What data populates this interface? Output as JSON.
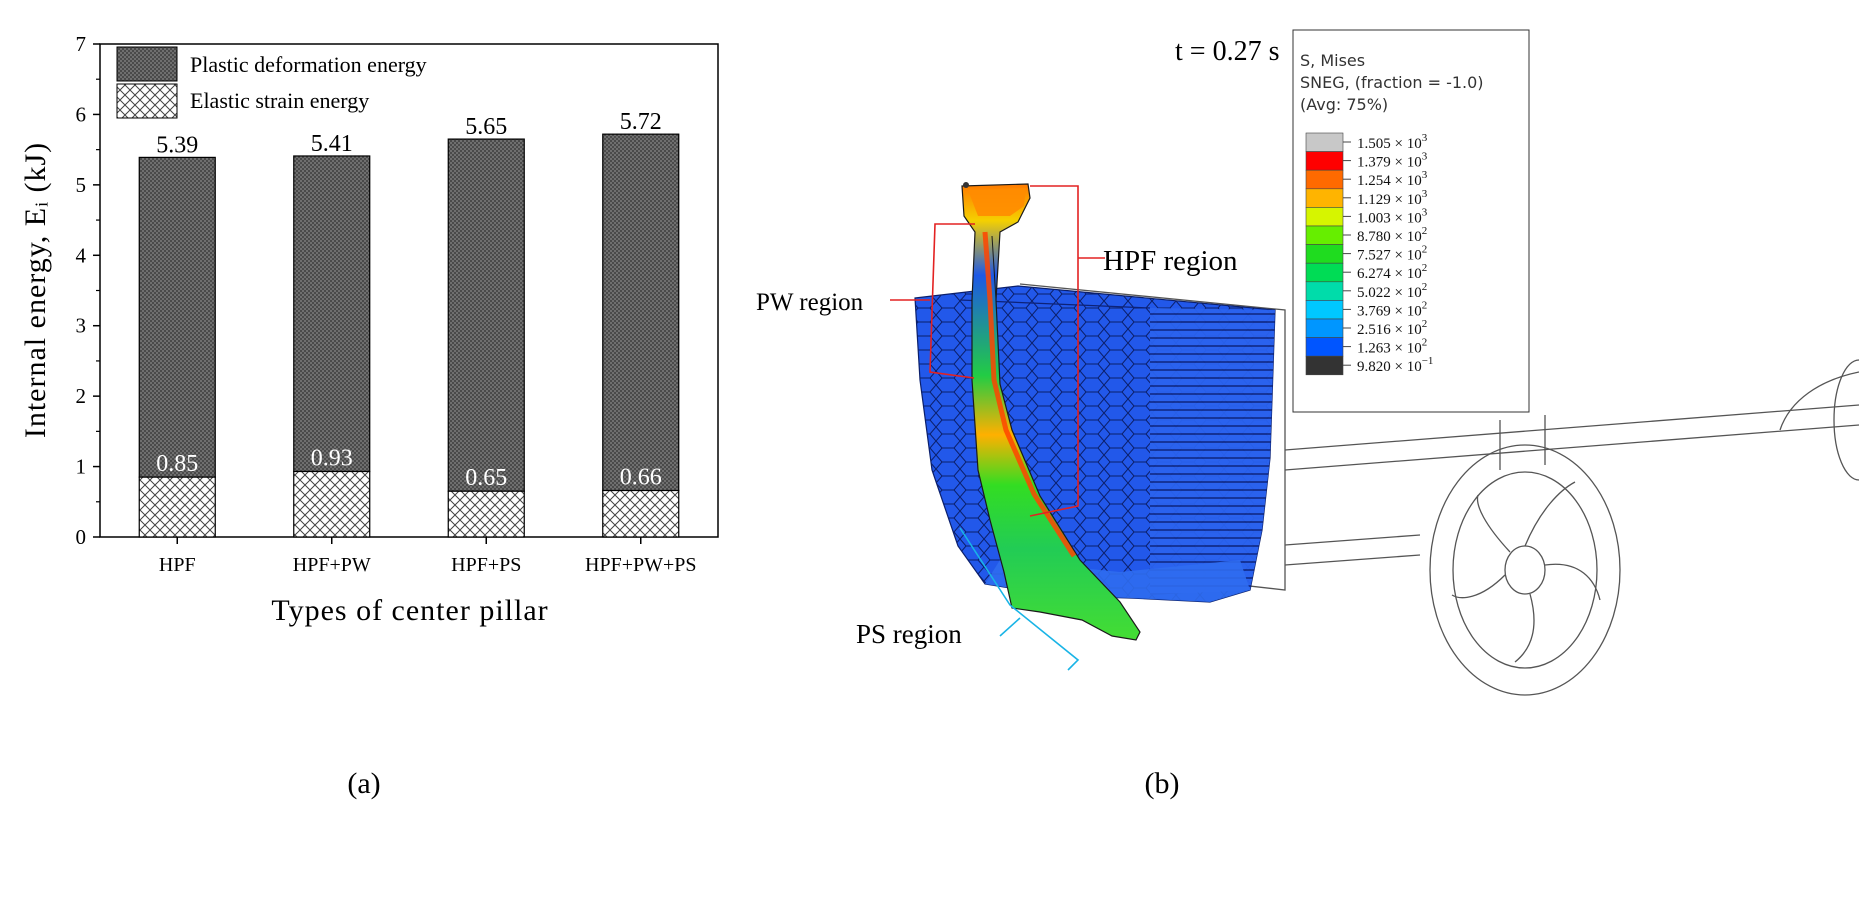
{
  "chart_data": {
    "type": "bar",
    "stacked": true,
    "categories": [
      "HPF",
      "HPF+PW",
      "HPF+PS",
      "HPF+PW+PS"
    ],
    "series": [
      {
        "name": "Elastic strain energy",
        "values": [
          0.85,
          0.93,
          0.65,
          0.66
        ]
      },
      {
        "name": "Plastic deformation energy",
        "values": [
          4.54,
          4.48,
          5.0,
          5.06
        ]
      }
    ],
    "totals": [
      5.39,
      5.41,
      5.65,
      5.72
    ],
    "total_labels": [
      "5.39",
      "5.41",
      "5.65",
      "5.72"
    ],
    "elastic_labels": [
      "0.85",
      "0.93",
      "0.65",
      "0.66"
    ],
    "xlabel": "Types of center pillar",
    "ylabel": "Internal energy, Eᵢ (kJ)",
    "ylim": [
      0,
      7
    ],
    "yticks": [
      "0",
      "1",
      "2",
      "3",
      "4",
      "5",
      "6",
      "7"
    ],
    "legend": {
      "placement": "top-left",
      "plastic": "Plastic deformation energy",
      "elastic": "Elastic strain energy"
    },
    "grid": false
  },
  "panel_labels": {
    "a": "(a)",
    "b": "(b)"
  },
  "simulation": {
    "time_label": "t = 0.27 s",
    "legend": {
      "line1": "S, Mises",
      "line2": "SNEG, (fraction = -1.0)",
      "line3": "(Avg: 75%)",
      "entries": [
        {
          "mant": "1.505",
          "exp": "3",
          "color": "#c8c8c8"
        },
        {
          "mant": "1.379",
          "exp": "3",
          "color": "#ff0000"
        },
        {
          "mant": "1.254",
          "exp": "3",
          "color": "#ff6a00"
        },
        {
          "mant": "1.129",
          "exp": "3",
          "color": "#ffb400"
        },
        {
          "mant": "1.003",
          "exp": "3",
          "color": "#d6f500"
        },
        {
          "mant": "8.780",
          "exp": "2",
          "color": "#66ee00"
        },
        {
          "mant": "7.527",
          "exp": "2",
          "color": "#1fdc1f"
        },
        {
          "mant": "6.274",
          "exp": "2",
          "color": "#00dc55"
        },
        {
          "mant": "5.022",
          "exp": "2",
          "color": "#00dcaa"
        },
        {
          "mant": "3.769",
          "exp": "2",
          "color": "#00c8ff"
        },
        {
          "mant": "2.516",
          "exp": "2",
          "color": "#0096ff"
        },
        {
          "mant": "1.263",
          "exp": "2",
          "color": "#0055ff"
        },
        {
          "mant": "9.820",
          "exp": "−1",
          "color": "#333333"
        }
      ]
    },
    "region_labels": {
      "hpf": "HPF region",
      "pw": "PW region",
      "ps": "PS region"
    },
    "colors": {
      "deformed_block": "#1e50e6",
      "pillar_stress_high": "#ff3300",
      "pillar_stress_mid": "#22dd22",
      "hpf_bracket": "#e32222",
      "ps_bracket": "#19b4e6"
    }
  }
}
